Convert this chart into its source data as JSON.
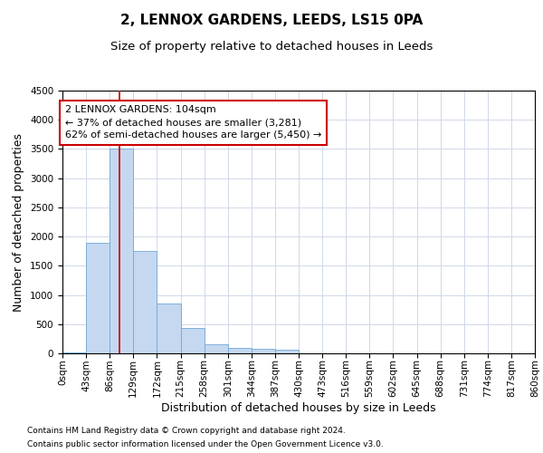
{
  "title": "2, LENNOX GARDENS, LEEDS, LS15 0PA",
  "subtitle": "Size of property relative to detached houses in Leeds",
  "xlabel": "Distribution of detached houses by size in Leeds",
  "ylabel": "Number of detached properties",
  "footnote1": "Contains HM Land Registry data © Crown copyright and database right 2024.",
  "footnote2": "Contains public sector information licensed under the Open Government Licence v3.0.",
  "bar_edges": [
    0,
    43,
    86,
    129,
    172,
    215,
    258,
    301,
    344,
    387,
    430,
    473,
    516,
    559,
    602,
    645,
    688,
    731,
    774,
    817,
    860
  ],
  "bar_heights": [
    10,
    1900,
    3500,
    1750,
    850,
    430,
    160,
    100,
    75,
    60,
    0,
    0,
    0,
    0,
    0,
    0,
    0,
    0,
    0,
    0
  ],
  "bar_color": "#c5d8f0",
  "bar_edge_color": "#6fa8d6",
  "property_size": 104,
  "vline_color": "#cc0000",
  "annotation_text": "2 LENNOX GARDENS: 104sqm\n← 37% of detached houses are smaller (3,281)\n62% of semi-detached houses are larger (5,450) →",
  "annotation_box_color": "#ffffff",
  "annotation_box_edge_color": "#cc0000",
  "ylim": [
    0,
    4500
  ],
  "yticks": [
    0,
    500,
    1000,
    1500,
    2000,
    2500,
    3000,
    3500,
    4000,
    4500
  ],
  "background_color": "#ffffff",
  "grid_color": "#d0d8e8",
  "title_fontsize": 11,
  "subtitle_fontsize": 9.5,
  "tick_label_fontsize": 7.5,
  "axis_label_fontsize": 9,
  "footnote_fontsize": 6.5
}
